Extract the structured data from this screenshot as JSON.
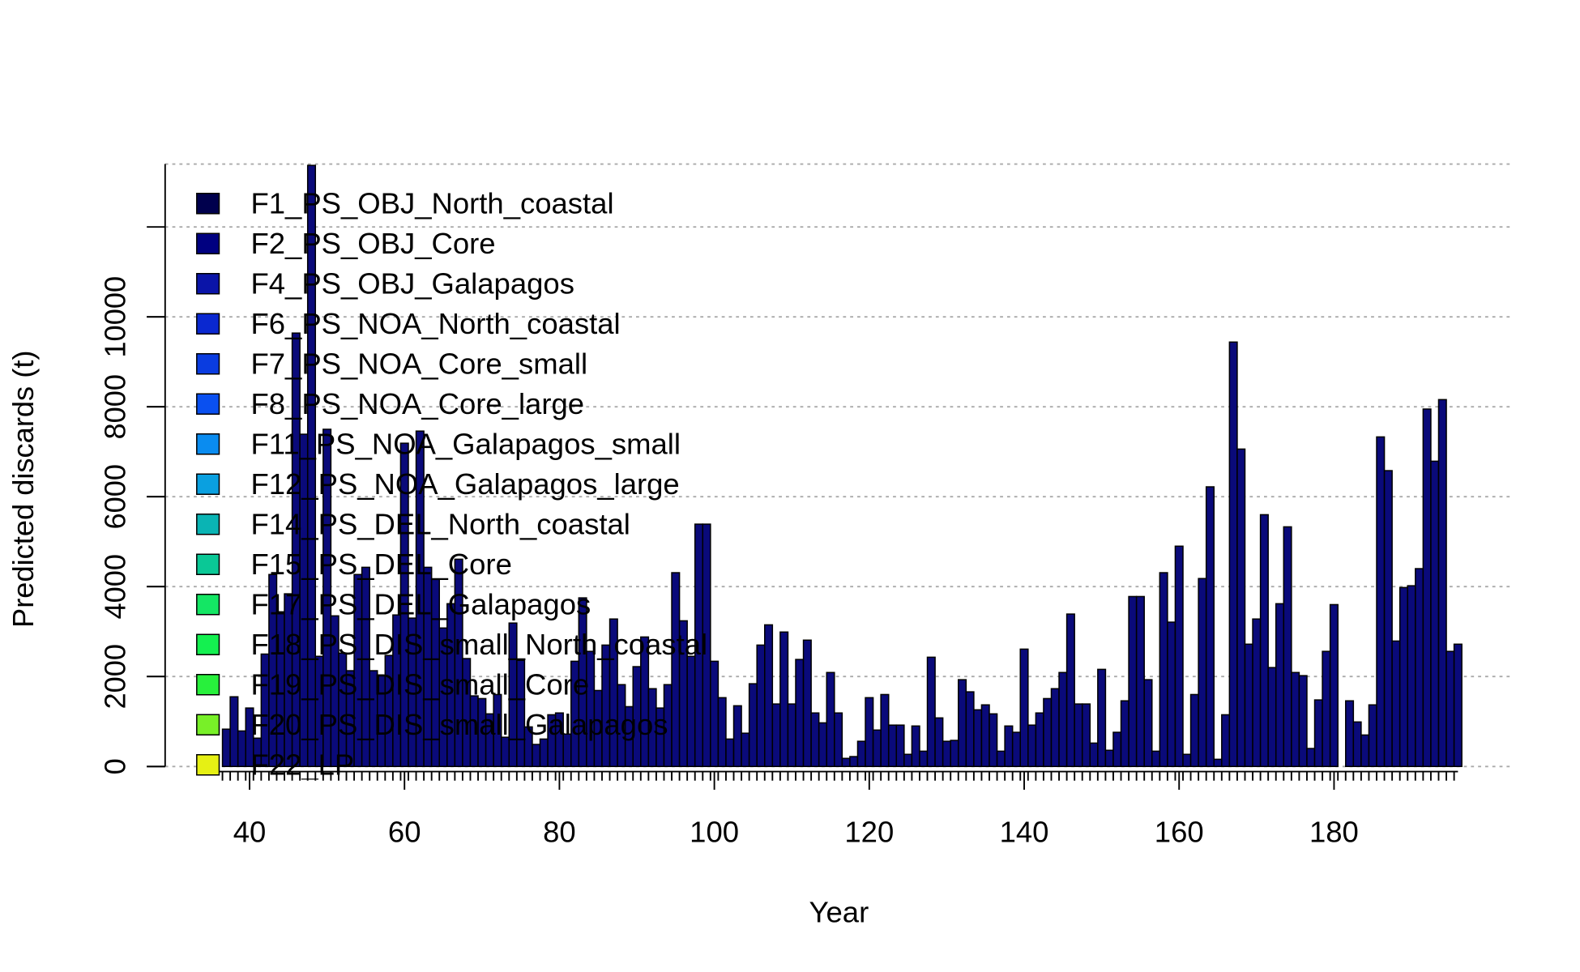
{
  "chart_data": {
    "type": "bar",
    "x_label": "Year",
    "y_label": "Predicted discards (t)",
    "color": "#0a0a7a",
    "x": [
      37,
      38,
      39,
      40,
      41,
      42,
      43,
      44,
      45,
      46,
      47,
      48,
      49,
      50,
      51,
      52,
      53,
      54,
      55,
      56,
      57,
      58,
      59,
      60,
      61,
      62,
      63,
      64,
      65,
      66,
      67,
      68,
      69,
      70,
      71,
      72,
      73,
      74,
      75,
      76,
      77,
      78,
      79,
      80,
      81,
      82,
      83,
      84,
      85,
      86,
      87,
      88,
      89,
      90,
      91,
      92,
      93,
      94,
      95,
      96,
      97,
      98,
      99,
      100,
      101,
      102,
      103,
      104,
      105,
      106,
      107,
      108,
      109,
      110,
      111,
      112,
      113,
      114,
      115,
      116,
      117,
      118,
      119,
      120,
      121,
      122,
      123,
      124,
      125,
      126,
      127,
      128,
      129,
      130,
      131,
      132,
      133,
      134,
      135,
      136,
      137,
      138,
      139,
      140,
      141,
      142,
      143,
      144,
      145,
      146,
      147,
      148,
      149,
      150,
      151,
      152,
      153,
      154,
      155,
      156,
      157,
      158,
      159,
      160,
      161,
      162,
      163,
      164,
      165,
      166,
      167,
      168,
      169,
      170,
      171,
      172,
      173,
      174,
      175,
      176,
      177,
      178,
      179,
      180,
      181,
      182,
      183,
      184,
      185,
      186,
      187,
      188,
      189,
      190,
      191,
      192,
      193,
      194,
      195,
      196
    ],
    "values": [
      830,
      1550,
      790,
      1300,
      630,
      2500,
      4270,
      3440,
      3840,
      9640,
      7390,
      13370,
      2450,
      7500,
      3350,
      2520,
      2130,
      4270,
      4430,
      2130,
      2020,
      2470,
      3370,
      7190,
      3300,
      7460,
      4430,
      4160,
      3080,
      3620,
      4610,
      2400,
      1570,
      1510,
      1170,
      1600,
      650,
      3190,
      2360,
      880,
      490,
      610,
      1150,
      1190,
      720,
      2340,
      3750,
      2560,
      1690,
      2700,
      3280,
      1820,
      1330,
      2220,
      2880,
      1730,
      1300,
      1820,
      4310,
      3240,
      2450,
      5390,
      5390,
      2340,
      1530,
      610,
      1350,
      740,
      1840,
      2700,
      3150,
      1390,
      2990,
      1390,
      2380,
      2810,
      1190,
      970,
      2090,
      1190,
      180,
      220,
      560,
      1530,
      810,
      1600,
      920,
      920,
      270,
      900,
      340,
      2430,
      1080,
      560,
      580,
      1930,
      1660,
      1260,
      1370,
      1170,
      340,
      900,
      760,
      2610,
      920,
      1190,
      1510,
      1730,
      2090,
      3390,
      1390,
      1390,
      520,
      2160,
      360,
      760,
      1460,
      3780,
      3780,
      1930,
      340,
      4310,
      3210,
      4900,
      270,
      1600,
      4180,
      6220,
      160,
      1150,
      9440,
      7060,
      2720,
      3280,
      5600,
      2200,
      3620,
      5330,
      2090,
      2020,
      400,
      1480,
      2560,
      3600,
      0,
      1460,
      990,
      700,
      1370,
      7330,
      6580,
      2790,
      3980,
      4020,
      4400,
      7950,
      6790,
      8160,
      2560,
      2720
    ],
    "xlim": [
      29.1,
      203.2
    ],
    "xticks": [
      40,
      60,
      80,
      100,
      120,
      140,
      160,
      180
    ],
    "ylim": [
      0,
      13400
    ],
    "yticks": [
      0,
      2000,
      4000,
      6000,
      8000,
      10000
    ],
    "ygrid": [
      0,
      2000,
      4000,
      6000,
      8000,
      10000,
      12000,
      13400
    ],
    "grid": true,
    "legend_position": "top-left",
    "legend": [
      {
        "name": "F1_PS_OBJ_North_coastal",
        "color": "#00004d"
      },
      {
        "name": "F2_PS_OBJ_Core",
        "color": "#000080"
      },
      {
        "name": "F4_PS_OBJ_Galapagos",
        "color": "#0a14a8"
      },
      {
        "name": "F6_PS_NOA_North_coastal",
        "color": "#0a28d0"
      },
      {
        "name": "F7_PS_NOA_Core_small",
        "color": "#0a3ce0"
      },
      {
        "name": "F8_PS_NOA_Core_large",
        "color": "#0a50f0"
      },
      {
        "name": "F11_PS_NOA_Galapagos_small",
        "color": "#0a8cf0"
      },
      {
        "name": "F12_PS_NOA_Galapagos_large",
        "color": "#0aa0e0"
      },
      {
        "name": "F14_PS_DEL_North_coastal",
        "color": "#0ab4b4"
      },
      {
        "name": "F15_PS_DEL_Core",
        "color": "#0ac896"
      },
      {
        "name": "F17_PS_DEL_Galapagos",
        "color": "#14e664"
      },
      {
        "name": "F18_PS_DIS_small_North_coastal",
        "color": "#14f050"
      },
      {
        "name": "F19_PS_DIS_small_Core",
        "color": "#28f03c"
      },
      {
        "name": "F20_PS_DIS_small_Galapagos",
        "color": "#78f028"
      },
      {
        "name": "F22_LP",
        "color": "#e6f014"
      }
    ]
  }
}
